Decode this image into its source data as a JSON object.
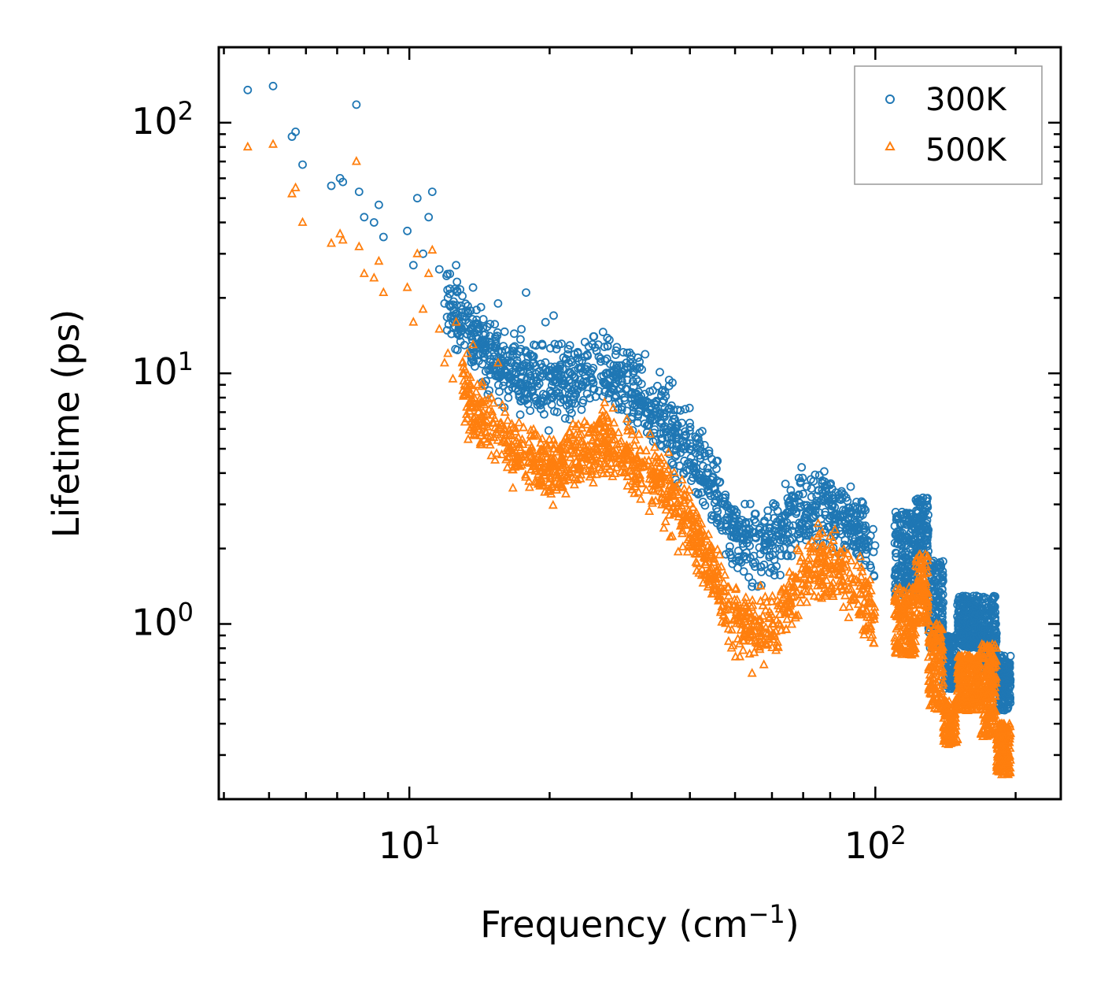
{
  "chart_data": {
    "type": "scatter",
    "xscale": "log",
    "yscale": "log",
    "xlabel": "Frequency (cm",
    "xlabel_sup": "−1",
    "xlabel_end": ")",
    "ylabel": "Lifetime (ps)",
    "xlim": [
      3.9,
      250
    ],
    "ylim": [
      0.2,
      200
    ],
    "x_ticks": [
      {
        "base": "10",
        "exp": "1",
        "value": 10
      },
      {
        "base": "10",
        "exp": "2",
        "value": 100
      }
    ],
    "y_ticks": [
      {
        "base": "10",
        "exp": "0",
        "value": 1
      },
      {
        "base": "10",
        "exp": "1",
        "value": 10
      },
      {
        "base": "10",
        "exp": "2",
        "value": 100
      }
    ],
    "legend_position": "top-right",
    "series": [
      {
        "name": "300K",
        "color": "#1f77b4",
        "marker": "circle",
        "points": [
          [
            4.5,
            135
          ],
          [
            5.1,
            140
          ],
          [
            5.6,
            88
          ],
          [
            5.7,
            92
          ],
          [
            5.9,
            68
          ],
          [
            6.8,
            56
          ],
          [
            7.1,
            60
          ],
          [
            7.2,
            58
          ],
          [
            7.7,
            118
          ],
          [
            7.8,
            53
          ],
          [
            8.0,
            42
          ],
          [
            8.4,
            40
          ],
          [
            8.6,
            47
          ],
          [
            8.8,
            35
          ],
          [
            9.9,
            37
          ],
          [
            10.2,
            27
          ],
          [
            10.4,
            50
          ],
          [
            10.7,
            30
          ],
          [
            11.0,
            42
          ],
          [
            11.2,
            53
          ],
          [
            11.6,
            26
          ],
          [
            11.9,
            19
          ],
          [
            12.1,
            20
          ],
          [
            12.4,
            16
          ],
          [
            12.6,
            27
          ],
          [
            13.0,
            18
          ],
          [
            13.7,
            22
          ],
          [
            14.0,
            15
          ],
          [
            14.4,
            12
          ],
          [
            15.0,
            13
          ],
          [
            15.5,
            19
          ],
          [
            16.6,
            11
          ],
          [
            17.4,
            15
          ],
          [
            17.8,
            21
          ],
          [
            18.5,
            13
          ],
          [
            19.6,
            16
          ],
          [
            20.4,
            17
          ]
        ],
        "trend": [
          [
            12,
            20
          ],
          [
            14,
            13
          ],
          [
            16,
            10.5
          ],
          [
            18,
            9.5
          ],
          [
            20,
            8.8
          ],
          [
            22,
            9.2
          ],
          [
            24,
            10.2
          ],
          [
            26,
            10.2
          ],
          [
            28,
            9.4
          ],
          [
            30,
            8.6
          ],
          [
            33,
            7.4
          ],
          [
            36,
            6.2
          ],
          [
            40,
            4.9
          ],
          [
            44,
            3.6
          ],
          [
            48,
            2.6
          ],
          [
            52,
            2.15
          ],
          [
            56,
            2.0
          ],
          [
            60,
            2.15
          ],
          [
            65,
            2.55
          ],
          [
            70,
            2.9
          ],
          [
            75,
            3.05
          ],
          [
            80,
            2.95
          ],
          [
            85,
            2.7
          ],
          [
            90,
            2.45
          ],
          [
            96,
            2.1
          ],
          [
            100,
            1.8
          ]
        ],
        "clusters": [
          {
            "from": 110,
            "to": 122,
            "lo": 1.3,
            "hi": 2.8
          },
          {
            "from": 122,
            "to": 130,
            "lo": 1.8,
            "hi": 3.2
          },
          {
            "from": 130,
            "to": 140,
            "lo": 0.8,
            "hi": 1.8
          },
          {
            "from": 140,
            "to": 150,
            "lo": 0.55,
            "hi": 0.9
          },
          {
            "from": 150,
            "to": 168,
            "lo": 0.8,
            "hi": 1.3
          },
          {
            "from": 168,
            "to": 182,
            "lo": 0.65,
            "hi": 1.3
          },
          {
            "from": 182,
            "to": 195,
            "lo": 0.45,
            "hi": 0.75
          }
        ],
        "spread": 0.5
      },
      {
        "name": "500K",
        "color": "#ff7f0e",
        "marker": "triangle",
        "points": [
          [
            4.5,
            80
          ],
          [
            5.1,
            82
          ],
          [
            5.6,
            52
          ],
          [
            5.7,
            55
          ],
          [
            5.9,
            40
          ],
          [
            6.8,
            33
          ],
          [
            7.1,
            36
          ],
          [
            7.2,
            34
          ],
          [
            7.7,
            70
          ],
          [
            7.8,
            32
          ],
          [
            8.0,
            25
          ],
          [
            8.4,
            24
          ],
          [
            8.6,
            28
          ],
          [
            8.8,
            21
          ],
          [
            9.9,
            22
          ],
          [
            10.2,
            16
          ],
          [
            10.4,
            30
          ],
          [
            10.7,
            18
          ],
          [
            11.0,
            25
          ],
          [
            11.2,
            31
          ],
          [
            11.6,
            15
          ],
          [
            11.9,
            11
          ],
          [
            12.1,
            12
          ],
          [
            12.4,
            9.5
          ],
          [
            12.6,
            16
          ],
          [
            13.0,
            11
          ],
          [
            13.7,
            13
          ],
          [
            14.0,
            9
          ],
          [
            14.4,
            7
          ],
          [
            15.0,
            8
          ],
          [
            15.5,
            11
          ]
        ],
        "trend": [
          [
            13,
            9
          ],
          [
            14,
            6.5
          ],
          [
            16,
            5.2
          ],
          [
            18,
            4.6
          ],
          [
            20,
            4.2
          ],
          [
            22,
            4.4
          ],
          [
            24,
            4.9
          ],
          [
            26,
            5.2
          ],
          [
            28,
            5.0
          ],
          [
            30,
            4.6
          ],
          [
            33,
            4.0
          ],
          [
            36,
            3.3
          ],
          [
            40,
            2.4
          ],
          [
            44,
            1.7
          ],
          [
            48,
            1.2
          ],
          [
            52,
            1.0
          ],
          [
            56,
            0.95
          ],
          [
            60,
            1.0
          ],
          [
            65,
            1.25
          ],
          [
            70,
            1.55
          ],
          [
            75,
            1.75
          ],
          [
            80,
            1.7
          ],
          [
            85,
            1.55
          ],
          [
            90,
            1.4
          ],
          [
            96,
            1.2
          ],
          [
            100,
            1.0
          ]
        ],
        "clusters": [
          {
            "from": 110,
            "to": 122,
            "lo": 0.75,
            "hi": 1.4
          },
          {
            "from": 122,
            "to": 130,
            "lo": 1.0,
            "hi": 1.9
          },
          {
            "from": 130,
            "to": 140,
            "lo": 0.45,
            "hi": 1.0
          },
          {
            "from": 140,
            "to": 150,
            "lo": 0.33,
            "hi": 0.5
          },
          {
            "from": 150,
            "to": 168,
            "lo": 0.45,
            "hi": 0.75
          },
          {
            "from": 168,
            "to": 182,
            "lo": 0.35,
            "hi": 0.85
          },
          {
            "from": 182,
            "to": 195,
            "lo": 0.25,
            "hi": 0.4
          }
        ],
        "spread": 0.45
      }
    ]
  }
}
